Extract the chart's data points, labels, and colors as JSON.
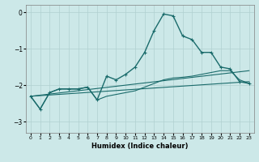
{
  "title": "",
  "xlabel": "Humidex (Indice chaleur)",
  "background_color": "#cce8e8",
  "grid_color": "#b0d0d0",
  "line_color": "#1a6b6b",
  "xlim": [
    -0.5,
    23.5
  ],
  "ylim": [
    -3.3,
    0.2
  ],
  "yticks": [
    0,
    -1,
    -2,
    -3
  ],
  "xticks": [
    0,
    1,
    2,
    3,
    4,
    5,
    6,
    7,
    8,
    9,
    10,
    11,
    12,
    13,
    14,
    15,
    16,
    17,
    18,
    19,
    20,
    21,
    22,
    23
  ],
  "series": [
    {
      "x": [
        0,
        1,
        2,
        3,
        4,
        5,
        6,
        7,
        8,
        9,
        10,
        11,
        12,
        13,
        14,
        15,
        16,
        17,
        18,
        19,
        20,
        21,
        22,
        23
      ],
      "y": [
        -2.3,
        -2.65,
        -2.2,
        -2.1,
        -2.1,
        -2.1,
        -2.05,
        -2.4,
        -1.75,
        -1.85,
        -1.7,
        -1.5,
        -1.1,
        -0.5,
        -0.05,
        -0.1,
        -0.65,
        -0.75,
        -1.1,
        -1.1,
        -1.5,
        -1.55,
        -1.9,
        -1.95
      ],
      "marker": "+",
      "linewidth": 1.0
    },
    {
      "x": [
        0,
        23
      ],
      "y": [
        -2.3,
        -1.6
      ],
      "marker": null,
      "linewidth": 0.8
    },
    {
      "x": [
        0,
        23
      ],
      "y": [
        -2.3,
        -1.9
      ],
      "marker": null,
      "linewidth": 0.8
    },
    {
      "x": [
        0,
        1,
        2,
        3,
        4,
        5,
        6,
        7,
        8,
        9,
        10,
        11,
        12,
        13,
        14,
        15,
        16,
        17,
        18,
        19,
        20,
        21,
        22,
        23
      ],
      "y": [
        -2.3,
        -2.65,
        -2.2,
        -2.1,
        -2.1,
        -2.1,
        -2.05,
        -2.4,
        -2.3,
        -2.25,
        -2.2,
        -2.15,
        -2.05,
        -1.95,
        -1.85,
        -1.8,
        -1.78,
        -1.75,
        -1.7,
        -1.65,
        -1.6,
        -1.6,
        -1.85,
        -1.95
      ],
      "marker": null,
      "linewidth": 0.8
    }
  ]
}
